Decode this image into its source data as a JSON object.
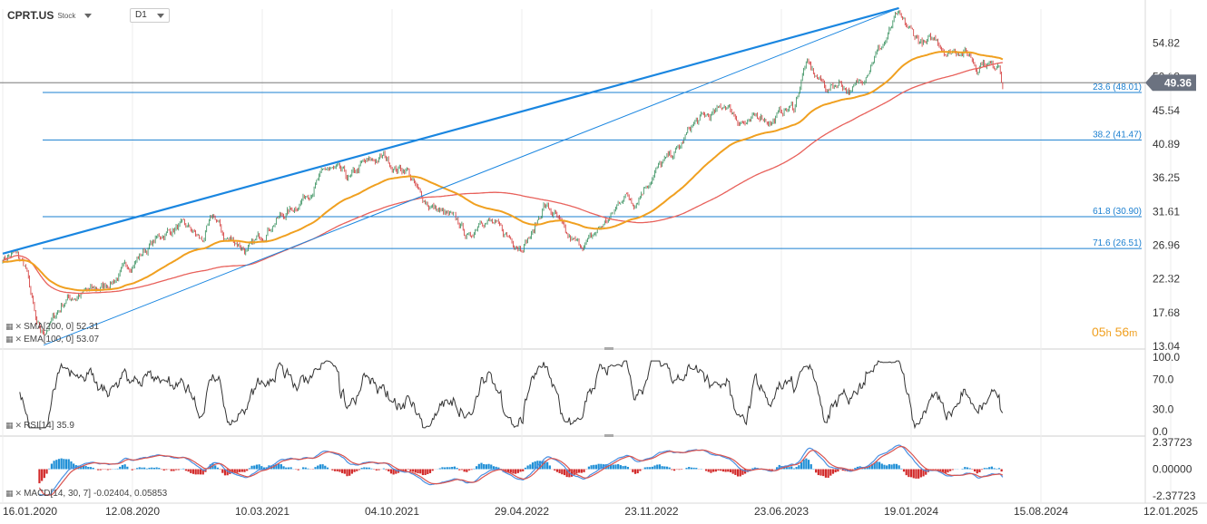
{
  "header": {
    "symbol": "CPRT.US",
    "kind": "Stock",
    "timeframe": "D1"
  },
  "indicators": {
    "sma": {
      "label": "SMA",
      "params": "[200, 0]",
      "value": "52.31",
      "color": "#e8615b"
    },
    "ema": {
      "label": "EMA",
      "params": "[100, 0]",
      "value": "53.07",
      "color": "#f0a020"
    },
    "rsi": {
      "label": "RSI",
      "params": "[14]",
      "value": "35.9"
    },
    "macd": {
      "label": "MACD",
      "params": "[14, 30, 7]",
      "value1": "-0.02404",
      "value2": "0.05853"
    }
  },
  "countdown": {
    "h": "05",
    "h_unit": "h",
    "m": "56",
    "m_unit": "m"
  },
  "icons": [
    "dropdown-caret-icon",
    "grid-icon",
    "close-icon"
  ],
  "chart_data": [
    {
      "type": "candlestick",
      "role": "price",
      "y_ticks": [
        54.82,
        50.18,
        45.54,
        40.89,
        36.25,
        31.61,
        26.96,
        22.32,
        17.68,
        13.04
      ],
      "y_tick_labels": [
        "54.82",
        "50.18",
        "45.54",
        "40.89",
        "36.25",
        "31.61",
        "26.96",
        "22.32",
        "17.68",
        "13.04"
      ],
      "ylim": [
        13.04,
        59.5
      ],
      "x_ticks": [
        "16.01.2020",
        "12.08.2020",
        "10.03.2021",
        "04.10.2021",
        "29.04.2022",
        "23.11.2022",
        "23.06.2023",
        "19.01.2024",
        "15.08.2024",
        "12.01.2025"
      ],
      "current_price": 49.36,
      "current_price_label": "49.36",
      "fib_levels": [
        {
          "pct": 23.6,
          "price": 48.01,
          "label": "23.6 (48.01)"
        },
        {
          "pct": 38.2,
          "price": 41.47,
          "label": "38.2 (41.47)"
        },
        {
          "pct": 61.8,
          "price": 30.9,
          "label": "61.8 (30.90)"
        },
        {
          "pct": 71.6,
          "price": 26.51,
          "label": "71.6 (26.51)"
        }
      ],
      "close_keypoints": [
        [
          0,
          25.2
        ],
        [
          0.01,
          25.8
        ],
        [
          0.02,
          24.0
        ],
        [
          0.025,
          20.0
        ],
        [
          0.03,
          15.5
        ],
        [
          0.035,
          14.6
        ],
        [
          0.045,
          17.0
        ],
        [
          0.055,
          19.5
        ],
        [
          0.07,
          20.3
        ],
        [
          0.085,
          21.0
        ],
        [
          0.1,
          22.5
        ],
        [
          0.12,
          25.5
        ],
        [
          0.14,
          28.5
        ],
        [
          0.155,
          29.5
        ],
        [
          0.165,
          29.0
        ],
        [
          0.175,
          27.5
        ],
        [
          0.185,
          31.0
        ],
        [
          0.195,
          28.0
        ],
        [
          0.205,
          27.5
        ],
        [
          0.215,
          26.0
        ],
        [
          0.225,
          28.0
        ],
        [
          0.24,
          30.5
        ],
        [
          0.255,
          32.0
        ],
        [
          0.27,
          34.5
        ],
        [
          0.285,
          37.5
        ],
        [
          0.295,
          37.0
        ],
        [
          0.305,
          36.0
        ],
        [
          0.315,
          38.0
        ],
        [
          0.325,
          38.5
        ],
        [
          0.335,
          39.2
        ],
        [
          0.345,
          37.5
        ],
        [
          0.355,
          37.5
        ],
        [
          0.365,
          34.0
        ],
        [
          0.375,
          32.5
        ],
        [
          0.39,
          31.0
        ],
        [
          0.4,
          30.0
        ],
        [
          0.41,
          27.8
        ],
        [
          0.42,
          31.0
        ],
        [
          0.43,
          30.0
        ],
        [
          0.44,
          28.5
        ],
        [
          0.455,
          27.0
        ],
        [
          0.465,
          28.5
        ],
        [
          0.475,
          32.5
        ],
        [
          0.485,
          31.0
        ],
        [
          0.495,
          28.0
        ],
        [
          0.505,
          27.0
        ],
        [
          0.515,
          27.5
        ],
        [
          0.525,
          29.5
        ],
        [
          0.535,
          31.0
        ],
        [
          0.545,
          34.0
        ],
        [
          0.555,
          33.0
        ],
        [
          0.565,
          35.5
        ],
        [
          0.575,
          37.5
        ],
        [
          0.585,
          39.0
        ],
        [
          0.595,
          40.5
        ],
        [
          0.605,
          43.5
        ],
        [
          0.615,
          44.5
        ],
        [
          0.625,
          45.0
        ],
        [
          0.635,
          46.5
        ],
        [
          0.645,
          44.5
        ],
        [
          0.655,
          43.5
        ],
        [
          0.665,
          45.0
        ],
        [
          0.675,
          44.0
        ],
        [
          0.685,
          45.5
        ],
        [
          0.695,
          46.0
        ],
        [
          0.705,
          52.0
        ],
        [
          0.715,
          50.0
        ],
        [
          0.725,
          48.5
        ],
        [
          0.735,
          49.5
        ],
        [
          0.745,
          48.0
        ],
        [
          0.755,
          50.0
        ],
        [
          0.765,
          53.0
        ],
        [
          0.775,
          55.0
        ],
        [
          0.785,
          58.5
        ],
        [
          0.79,
          57.5
        ],
        [
          0.8,
          56.0
        ],
        [
          0.81,
          54.5
        ],
        [
          0.82,
          55.5
        ],
        [
          0.83,
          53.5
        ],
        [
          0.84,
          54.0
        ],
        [
          0.85,
          53.0
        ],
        [
          0.855,
          51.5
        ],
        [
          0.86,
          52.5
        ],
        [
          0.87,
          51.5
        ],
        [
          0.875,
          52.5
        ],
        [
          0.878,
          49.4
        ]
      ]
    },
    {
      "type": "line",
      "role": "rsi",
      "series": [
        {
          "name": "RSI",
          "values_last": 35.9
        }
      ],
      "y_ticks": [
        "100.0",
        "70.0",
        "30.0",
        "0.0"
      ],
      "ylim": [
        0,
        100
      ]
    },
    {
      "type": "bar+line",
      "role": "macd",
      "y_ticks": [
        "2.37723",
        "0.00000",
        "-2.37723"
      ],
      "ylim": [
        -2.37723,
        2.37723
      ],
      "series": [
        {
          "name": "MACD",
          "value_last": -0.02404
        },
        {
          "name": "signal",
          "value_last": 0.05853
        }
      ]
    }
  ]
}
